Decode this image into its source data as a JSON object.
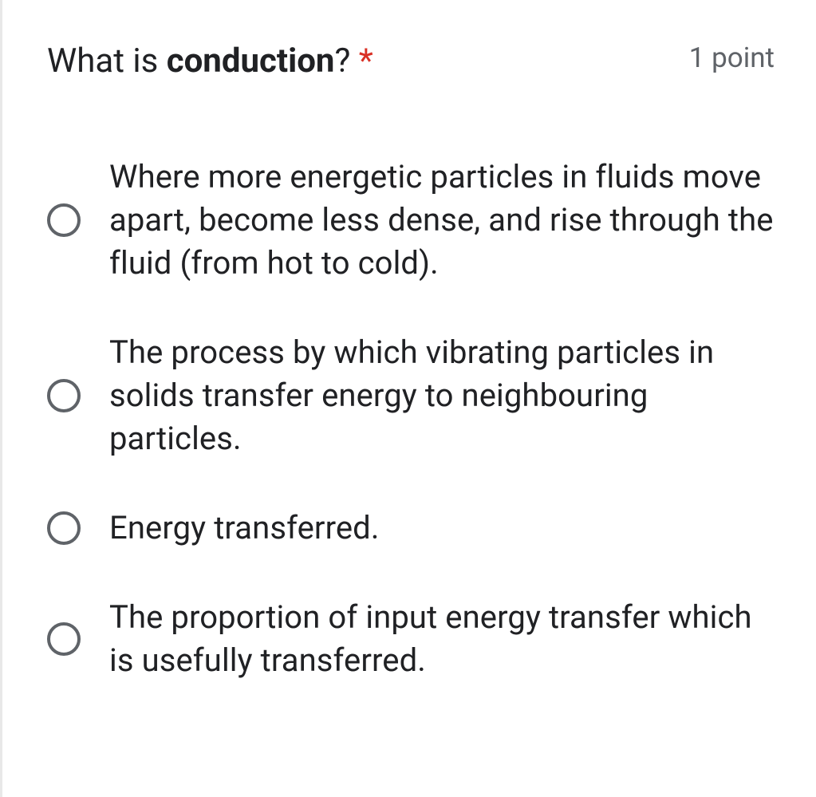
{
  "question": {
    "title_prefix": "What is ",
    "title_bold": "conduction",
    "title_suffix": "?",
    "required_marker": "*",
    "points_label": "1 point",
    "options": [
      "Where more energetic particles in fluids move apart, become less dense, and rise through the fluid (from hot to cold).",
      "The process by which vibrating particles in solids transfer energy to neighbouring particles.",
      "Energy transferred.",
      "The proportion of input energy transfer which is usefully transferred."
    ]
  },
  "colors": {
    "text_primary": "#202124",
    "text_secondary": "#5f6368",
    "required": "#d93025",
    "radio_border": "#5f6368",
    "left_border": "#e8e8e8",
    "background": "#ffffff"
  }
}
